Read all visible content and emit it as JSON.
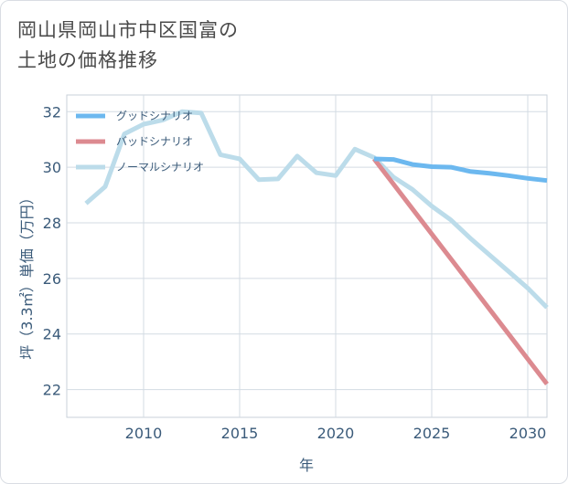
{
  "title": [
    "岡山県岡山市中区国富の",
    "土地の価格推移"
  ],
  "chart_data": {
    "type": "line",
    "xlabel": "年",
    "ylabel": "坪（3.3㎡）単価（万円）",
    "xlim": [
      2006,
      2031
    ],
    "ylim": [
      21,
      32.6
    ],
    "xticks": [
      2010,
      2015,
      2020,
      2025,
      2030
    ],
    "yticks": [
      22,
      24,
      26,
      28,
      30,
      32
    ],
    "grid": true,
    "legend_position": "top-left",
    "series": [
      {
        "name": "グッドシナリオ",
        "color": "#6cb8ef",
        "x": [
          2022,
          2023,
          2024,
          2025,
          2026,
          2027,
          2028,
          2029,
          2030,
          2031
        ],
        "y": [
          30.3,
          30.28,
          30.1,
          30.02,
          30.0,
          29.85,
          29.78,
          29.7,
          29.6,
          29.52
        ]
      },
      {
        "name": "バッドシナリオ",
        "color": "#dc8a90",
        "x": [
          2022,
          2023,
          2024,
          2025,
          2026,
          2027,
          2028,
          2029,
          2030,
          2031
        ],
        "y": [
          30.3,
          29.4,
          28.5,
          27.6,
          26.7,
          25.8,
          24.9,
          24.0,
          23.1,
          22.2
        ]
      },
      {
        "name": "ノーマルシナリオ",
        "color": "#bcdcea",
        "x": [
          2007,
          2008,
          2009,
          2010,
          2011,
          2012,
          2013,
          2014,
          2015,
          2016,
          2017,
          2018,
          2019,
          2020,
          2021,
          2022,
          2023,
          2024,
          2025,
          2026,
          2027,
          2028,
          2029,
          2030,
          2031
        ],
        "y": [
          28.7,
          29.3,
          31.2,
          31.55,
          31.7,
          32.0,
          31.95,
          30.45,
          30.3,
          29.55,
          29.58,
          30.4,
          29.8,
          29.7,
          30.65,
          30.35,
          29.65,
          29.2,
          28.6,
          28.1,
          27.45,
          26.85,
          26.25,
          25.65,
          24.95
        ]
      }
    ]
  }
}
